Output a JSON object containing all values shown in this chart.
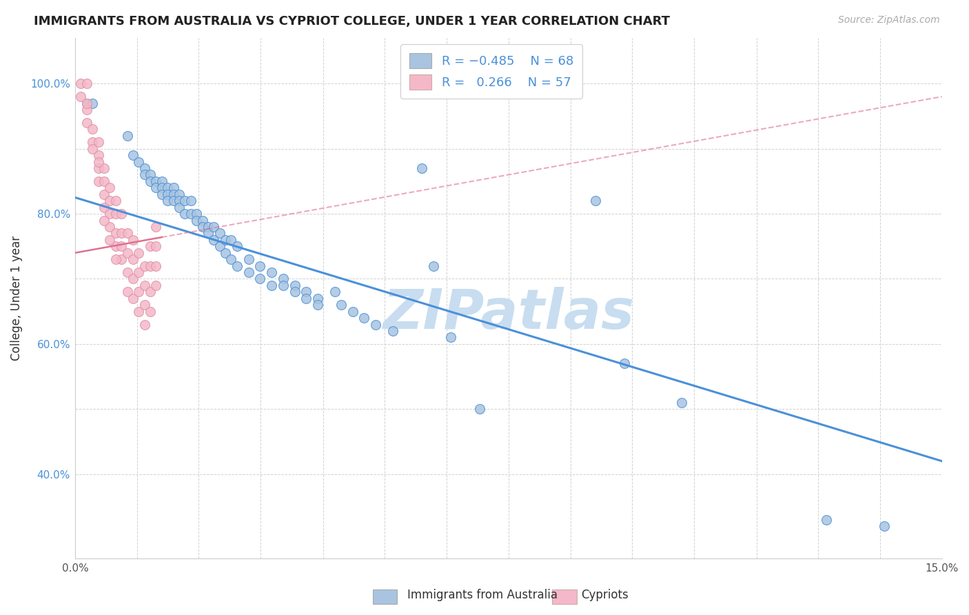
{
  "title": "IMMIGRANTS FROM AUSTRALIA VS CYPRIOT COLLEGE, UNDER 1 YEAR CORRELATION CHART",
  "source": "Source: ZipAtlas.com",
  "ylabel": "College, Under 1 year",
  "xlim": [
    0.0,
    0.15
  ],
  "ylim": [
    0.27,
    1.07
  ],
  "ytick_labels": [
    "40.0%",
    "",
    "60.0%",
    "",
    "80.0%",
    "",
    "100.0%"
  ],
  "ytick_values": [
    0.4,
    0.5,
    0.6,
    0.7,
    0.8,
    0.9,
    1.0
  ],
  "xtick_values": [
    0.0,
    0.0107,
    0.0214,
    0.0321,
    0.0429,
    0.0536,
    0.0643,
    0.075,
    0.0857,
    0.0964,
    0.1071,
    0.1179,
    0.1286,
    0.1393,
    0.15
  ],
  "xtick_labels": [
    "0.0%",
    "",
    "",
    "",
    "",
    "",
    "",
    "",
    "",
    "",
    "",
    "",
    "",
    "",
    "15.0%"
  ],
  "color_australia": "#a8c4e0",
  "color_cypriot": "#f4b8c8",
  "color_australia_line": "#4a90d9",
  "color_cypriot_line": "#e8a0b0",
  "watermark_color": "#c8ddf0",
  "australia_scatter": [
    [
      0.002,
      0.97
    ],
    [
      0.003,
      0.97
    ],
    [
      0.009,
      0.92
    ],
    [
      0.01,
      0.89
    ],
    [
      0.011,
      0.88
    ],
    [
      0.012,
      0.87
    ],
    [
      0.012,
      0.86
    ],
    [
      0.013,
      0.86
    ],
    [
      0.013,
      0.85
    ],
    [
      0.014,
      0.85
    ],
    [
      0.014,
      0.84
    ],
    [
      0.015,
      0.85
    ],
    [
      0.015,
      0.84
    ],
    [
      0.015,
      0.83
    ],
    [
      0.016,
      0.84
    ],
    [
      0.016,
      0.83
    ],
    [
      0.016,
      0.82
    ],
    [
      0.017,
      0.84
    ],
    [
      0.017,
      0.83
    ],
    [
      0.017,
      0.82
    ],
    [
      0.018,
      0.83
    ],
    [
      0.018,
      0.82
    ],
    [
      0.018,
      0.81
    ],
    [
      0.019,
      0.82
    ],
    [
      0.019,
      0.8
    ],
    [
      0.02,
      0.82
    ],
    [
      0.02,
      0.8
    ],
    [
      0.021,
      0.8
    ],
    [
      0.021,
      0.79
    ],
    [
      0.022,
      0.79
    ],
    [
      0.022,
      0.78
    ],
    [
      0.023,
      0.78
    ],
    [
      0.023,
      0.77
    ],
    [
      0.024,
      0.78
    ],
    [
      0.024,
      0.76
    ],
    [
      0.025,
      0.77
    ],
    [
      0.025,
      0.75
    ],
    [
      0.026,
      0.76
    ],
    [
      0.026,
      0.74
    ],
    [
      0.027,
      0.76
    ],
    [
      0.027,
      0.73
    ],
    [
      0.028,
      0.75
    ],
    [
      0.028,
      0.72
    ],
    [
      0.03,
      0.73
    ],
    [
      0.03,
      0.71
    ],
    [
      0.032,
      0.72
    ],
    [
      0.032,
      0.7
    ],
    [
      0.034,
      0.71
    ],
    [
      0.034,
      0.69
    ],
    [
      0.036,
      0.7
    ],
    [
      0.036,
      0.69
    ],
    [
      0.038,
      0.69
    ],
    [
      0.038,
      0.68
    ],
    [
      0.04,
      0.68
    ],
    [
      0.04,
      0.67
    ],
    [
      0.042,
      0.67
    ],
    [
      0.042,
      0.66
    ],
    [
      0.045,
      0.68
    ],
    [
      0.046,
      0.66
    ],
    [
      0.048,
      0.65
    ],
    [
      0.05,
      0.64
    ],
    [
      0.052,
      0.63
    ],
    [
      0.055,
      0.62
    ],
    [
      0.06,
      0.87
    ],
    [
      0.062,
      0.72
    ],
    [
      0.065,
      0.61
    ],
    [
      0.07,
      0.5
    ],
    [
      0.09,
      0.82
    ],
    [
      0.095,
      0.57
    ],
    [
      0.105,
      0.51
    ],
    [
      0.13,
      0.33
    ],
    [
      0.14,
      0.32
    ]
  ],
  "cypriot_scatter": [
    [
      0.001,
      1.0
    ],
    [
      0.002,
      1.0
    ],
    [
      0.002,
      0.96
    ],
    [
      0.002,
      0.94
    ],
    [
      0.003,
      0.93
    ],
    [
      0.003,
      0.91
    ],
    [
      0.004,
      0.91
    ],
    [
      0.004,
      0.89
    ],
    [
      0.004,
      0.87
    ],
    [
      0.004,
      0.85
    ],
    [
      0.005,
      0.87
    ],
    [
      0.005,
      0.85
    ],
    [
      0.005,
      0.83
    ],
    [
      0.005,
      0.81
    ],
    [
      0.006,
      0.84
    ],
    [
      0.006,
      0.82
    ],
    [
      0.006,
      0.8
    ],
    [
      0.006,
      0.78
    ],
    [
      0.007,
      0.82
    ],
    [
      0.007,
      0.8
    ],
    [
      0.007,
      0.77
    ],
    [
      0.007,
      0.75
    ],
    [
      0.008,
      0.8
    ],
    [
      0.008,
      0.77
    ],
    [
      0.008,
      0.75
    ],
    [
      0.008,
      0.73
    ],
    [
      0.009,
      0.77
    ],
    [
      0.009,
      0.74
    ],
    [
      0.009,
      0.71
    ],
    [
      0.009,
      0.68
    ],
    [
      0.01,
      0.76
    ],
    [
      0.01,
      0.73
    ],
    [
      0.01,
      0.7
    ],
    [
      0.01,
      0.67
    ],
    [
      0.011,
      0.74
    ],
    [
      0.011,
      0.71
    ],
    [
      0.011,
      0.68
    ],
    [
      0.011,
      0.65
    ],
    [
      0.012,
      0.72
    ],
    [
      0.012,
      0.69
    ],
    [
      0.012,
      0.66
    ],
    [
      0.012,
      0.63
    ],
    [
      0.013,
      0.75
    ],
    [
      0.013,
      0.72
    ],
    [
      0.013,
      0.68
    ],
    [
      0.013,
      0.65
    ],
    [
      0.014,
      0.78
    ],
    [
      0.014,
      0.75
    ],
    [
      0.014,
      0.72
    ],
    [
      0.014,
      0.69
    ],
    [
      0.001,
      0.98
    ],
    [
      0.002,
      0.97
    ],
    [
      0.003,
      0.9
    ],
    [
      0.004,
      0.88
    ],
    [
      0.005,
      0.79
    ],
    [
      0.006,
      0.76
    ],
    [
      0.007,
      0.73
    ]
  ],
  "blue_line_x": [
    0.0,
    0.15
  ],
  "blue_line_y": [
    0.825,
    0.42
  ],
  "pink_line_x": [
    0.0,
    0.15
  ],
  "pink_line_y": [
    0.74,
    0.98
  ]
}
